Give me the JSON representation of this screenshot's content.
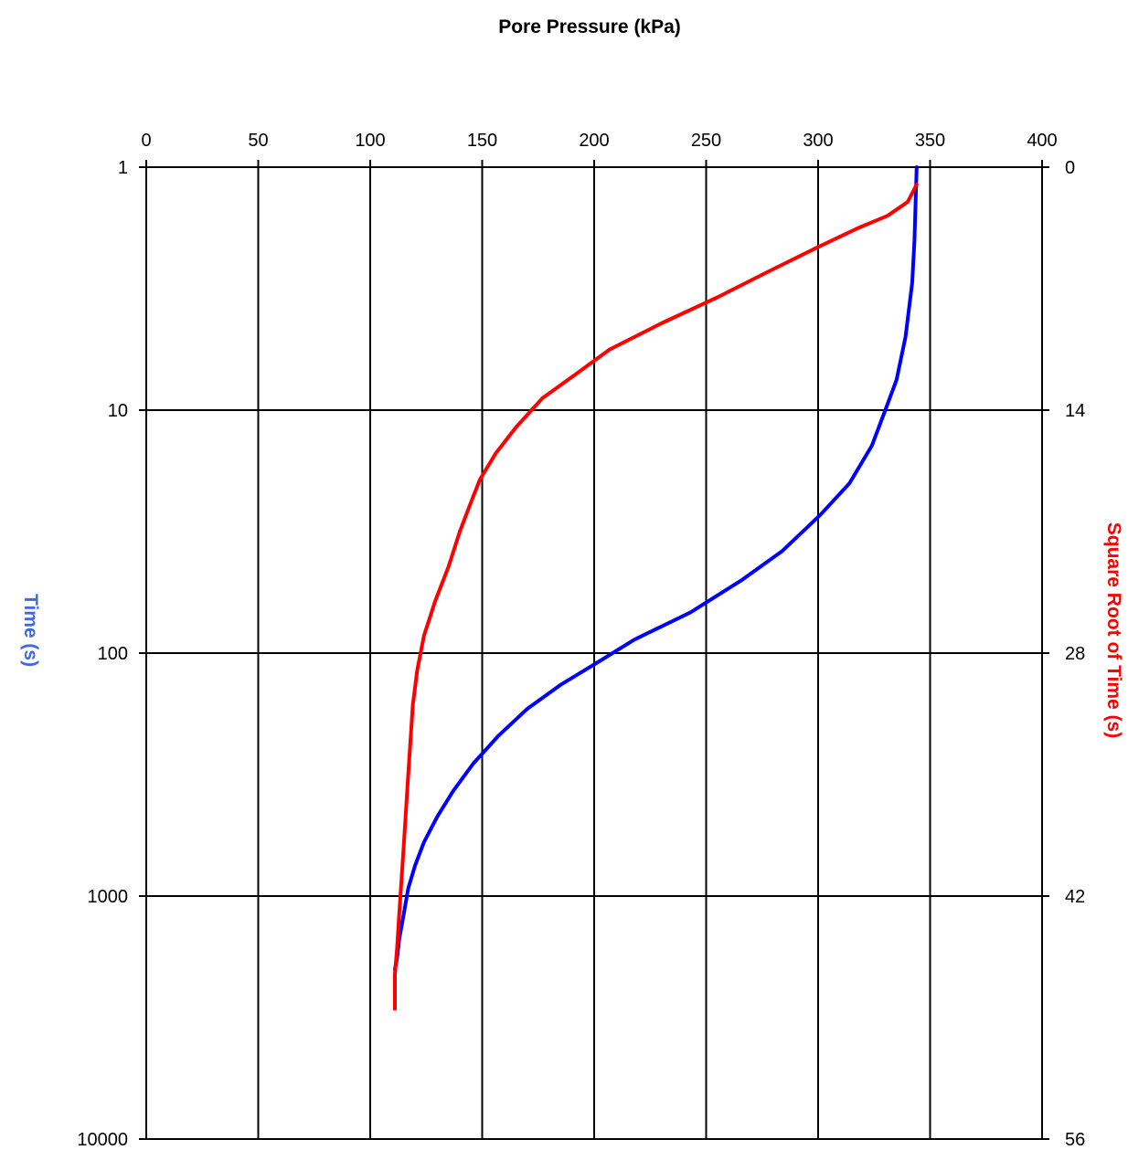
{
  "chart_data": {
    "type": "line",
    "title": "Pore Pressure (kPa)",
    "x_axis": {
      "label": "Pore Pressure (kPa)",
      "position": "top",
      "range": [
        0,
        400
      ],
      "ticks": [
        "0",
        "50",
        "100",
        "150",
        "200",
        "250",
        "300",
        "350",
        "400"
      ],
      "tick_values": [
        0,
        50,
        100,
        150,
        200,
        250,
        300,
        350,
        400
      ]
    },
    "y_left": {
      "label": "Time (s)",
      "color": "#4169e1",
      "scale": "log",
      "reversed": true,
      "range": [
        1,
        10000
      ],
      "ticks": [
        "1",
        "10",
        "100",
        "1000",
        "10000"
      ],
      "tick_values": [
        1,
        10,
        100,
        1000,
        10000
      ]
    },
    "y_right": {
      "label": "Square Root of Time (s)",
      "color": "#ff0000",
      "scale": "linear",
      "reversed": true,
      "range": [
        0,
        56
      ],
      "ticks": [
        "0",
        "14",
        "28",
        "42",
        "56"
      ],
      "tick_values": [
        0,
        14,
        28,
        42,
        56
      ]
    },
    "grid": true,
    "series": [
      {
        "axis": "y_left",
        "color": "#0000ff",
        "points": [
          [
            344,
            1
          ],
          [
            343,
            2
          ],
          [
            342,
            3
          ],
          [
            339,
            5
          ],
          [
            335,
            7.5
          ],
          [
            330,
            10
          ],
          [
            324,
            14
          ],
          [
            314,
            20
          ],
          [
            301,
            27
          ],
          [
            284,
            38
          ],
          [
            266,
            50
          ],
          [
            243,
            68
          ],
          [
            218,
            88
          ],
          [
            201,
            110
          ],
          [
            185,
            135
          ],
          [
            170,
            170
          ],
          [
            157,
            220
          ],
          [
            146,
            285
          ],
          [
            137,
            370
          ],
          [
            130,
            470
          ],
          [
            124,
            600
          ],
          [
            120,
            750
          ],
          [
            117,
            930
          ],
          [
            115,
            1180
          ],
          [
            113,
            1500
          ],
          [
            112,
            1800
          ],
          [
            111,
            2000
          ]
        ]
      },
      {
        "axis": "y_right",
        "color": "#ff0000",
        "points": [
          [
            344,
            1
          ],
          [
            340,
            2
          ],
          [
            331,
            2.8
          ],
          [
            318,
            3.5
          ],
          [
            300,
            4.6
          ],
          [
            278,
            6
          ],
          [
            255,
            7.5
          ],
          [
            230,
            9
          ],
          [
            207,
            10.5
          ],
          [
            191,
            12
          ],
          [
            177,
            13.3
          ],
          [
            165,
            15
          ],
          [
            156,
            16.5
          ],
          [
            149,
            18
          ],
          [
            145,
            19.3
          ],
          [
            140,
            21
          ],
          [
            135,
            23
          ],
          [
            129,
            25
          ],
          [
            124,
            27
          ],
          [
            121,
            29
          ],
          [
            119,
            31
          ],
          [
            118,
            33
          ],
          [
            117,
            35
          ],
          [
            116,
            37
          ],
          [
            115,
            39
          ],
          [
            114,
            41
          ],
          [
            113,
            43
          ],
          [
            112,
            45
          ],
          [
            111,
            46.5
          ],
          [
            111,
            47.5
          ],
          [
            111,
            48.5
          ]
        ]
      }
    ]
  }
}
